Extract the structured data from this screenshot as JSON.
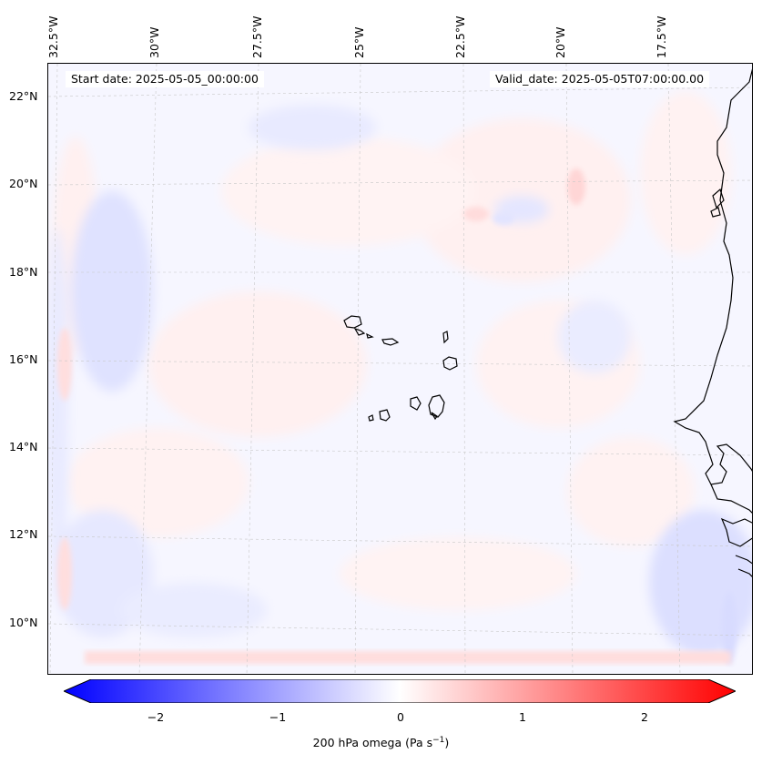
{
  "map": {
    "start_date": "Start date: 2025-05-05_00:00:00",
    "valid_date": "Valid_date: 2025-05-05T07:00:00.00",
    "lon_labels": [
      "32.5°W",
      "30°W",
      "27.5°W",
      "25°W",
      "22.5°W",
      "20°W",
      "17.5°W"
    ],
    "lat_labels": [
      "22°N",
      "20°N",
      "18°N",
      "16°N",
      "14°N",
      "12°N",
      "10°N"
    ],
    "variable": "200 hPa omega",
    "units": "Pa s",
    "units_exponent": "−1",
    "colormap": "bwr",
    "colors": {
      "negative": "#0000ff",
      "zero": "#ffffff",
      "positive": "#ff0000",
      "coastline": "#000000"
    },
    "gridlines": true
  },
  "colorbar": {
    "ticks": [
      "−2",
      "−1",
      "0",
      "1",
      "2"
    ],
    "range": [
      -2.6,
      2.6
    ],
    "extend": "both"
  }
}
